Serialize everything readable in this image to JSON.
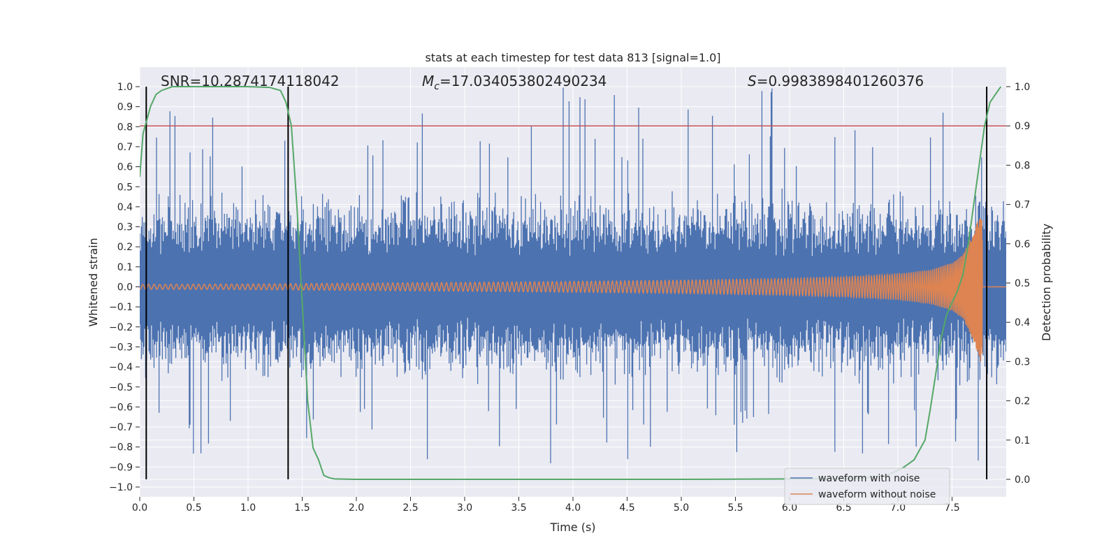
{
  "chart_data": {
    "type": "line",
    "title": "stats at each timestep for test data 813 [signal=1.0]",
    "xlabel": "Time (s)",
    "ylabel": "Whitened strain",
    "y2label": "Detection probability",
    "xlim": [
      0.0,
      8.0
    ],
    "ylim": [
      -1.0,
      1.0
    ],
    "y2lim": [
      -0.045,
      1.0
    ],
    "x_ticks": [
      "0.0",
      "0.5",
      "1.0",
      "1.5",
      "2.0",
      "2.5",
      "3.0",
      "3.5",
      "4.0",
      "4.5",
      "5.0",
      "5.5",
      "6.0",
      "6.5",
      "7.0",
      "7.5"
    ],
    "y_ticks": [
      "−1.0",
      "−0.9",
      "−0.8",
      "−0.7",
      "−0.6",
      "−0.5",
      "−0.4",
      "−0.3",
      "−0.2",
      "−0.1",
      "0.0",
      "0.1",
      "0.2",
      "0.3",
      "0.4",
      "0.5",
      "0.6",
      "0.7",
      "0.8",
      "0.9",
      "1.0"
    ],
    "y2_ticks": [
      "0.0",
      "0.1",
      "0.2",
      "0.3",
      "0.4",
      "0.5",
      "0.6",
      "0.7",
      "0.8",
      "0.9",
      "1.0"
    ],
    "grid": true,
    "legend_position": "lower-right",
    "stats": {
      "snr": "SNR=10.2874174118042",
      "mc_symbol": "M",
      "mc_sub": "c",
      "mc_value": "=17.034053802490234",
      "s_symbol": "S",
      "s_value": "=0.9983898401260376"
    },
    "series": [
      {
        "name": "waveform with noise",
        "color": "#4c72b0",
        "envelope_max": 1.0,
        "envelope_min": -0.91,
        "typical_amplitude": 0.45
      },
      {
        "name": "waveform without noise",
        "color": "#dd8452",
        "x": [
          0.0,
          1.0,
          2.0,
          3.0,
          4.0,
          5.0,
          6.0,
          6.5,
          7.0,
          7.3,
          7.5,
          7.6,
          7.7,
          7.78,
          7.8,
          8.0
        ],
        "amplitude": [
          0.012,
          0.014,
          0.018,
          0.022,
          0.027,
          0.033,
          0.042,
          0.05,
          0.065,
          0.085,
          0.12,
          0.16,
          0.27,
          0.4,
          0.0,
          0.0
        ],
        "merger_time": 7.78
      },
      {
        "name": "detection probability",
        "axis": "right",
        "color": "#55a868",
        "x": [
          0.0,
          0.03,
          0.1,
          0.15,
          0.2,
          0.3,
          0.4,
          0.6,
          0.8,
          1.0,
          1.2,
          1.3,
          1.35,
          1.4,
          1.45,
          1.5,
          1.55,
          1.6,
          1.65,
          1.7,
          1.75,
          1.8,
          2.0,
          3.0,
          4.0,
          5.0,
          6.0,
          6.6,
          6.9,
          7.05,
          7.15,
          7.25,
          7.3,
          7.35,
          7.4,
          7.45,
          7.5,
          7.55,
          7.6,
          7.65,
          7.7,
          7.75,
          7.8,
          7.85,
          7.9,
          7.95
        ],
        "y": [
          0.77,
          0.88,
          0.95,
          0.98,
          0.99,
          1.0,
          1.0,
          1.0,
          1.0,
          1.0,
          0.998,
          0.99,
          0.96,
          0.9,
          0.7,
          0.45,
          0.2,
          0.08,
          0.05,
          0.01,
          0.004,
          0.001,
          0.0,
          0.0,
          0.0,
          0.0,
          0.001,
          0.002,
          0.01,
          0.03,
          0.05,
          0.1,
          0.18,
          0.27,
          0.36,
          0.42,
          0.45,
          0.48,
          0.52,
          0.6,
          0.7,
          0.8,
          0.9,
          0.96,
          0.98,
          1.0
        ]
      }
    ],
    "hlines": [
      {
        "y2": 0.9,
        "color": "#c44e52"
      }
    ],
    "vlines": [
      {
        "x": 0.06,
        "y2_range": [
          0.0,
          1.0
        ],
        "color": "#000000"
      },
      {
        "x": 1.37,
        "y2_range": [
          0.0,
          1.0
        ],
        "color": "#000000"
      },
      {
        "x": 7.82,
        "y2_range": [
          0.0,
          1.0
        ],
        "color": "#000000"
      }
    ]
  }
}
